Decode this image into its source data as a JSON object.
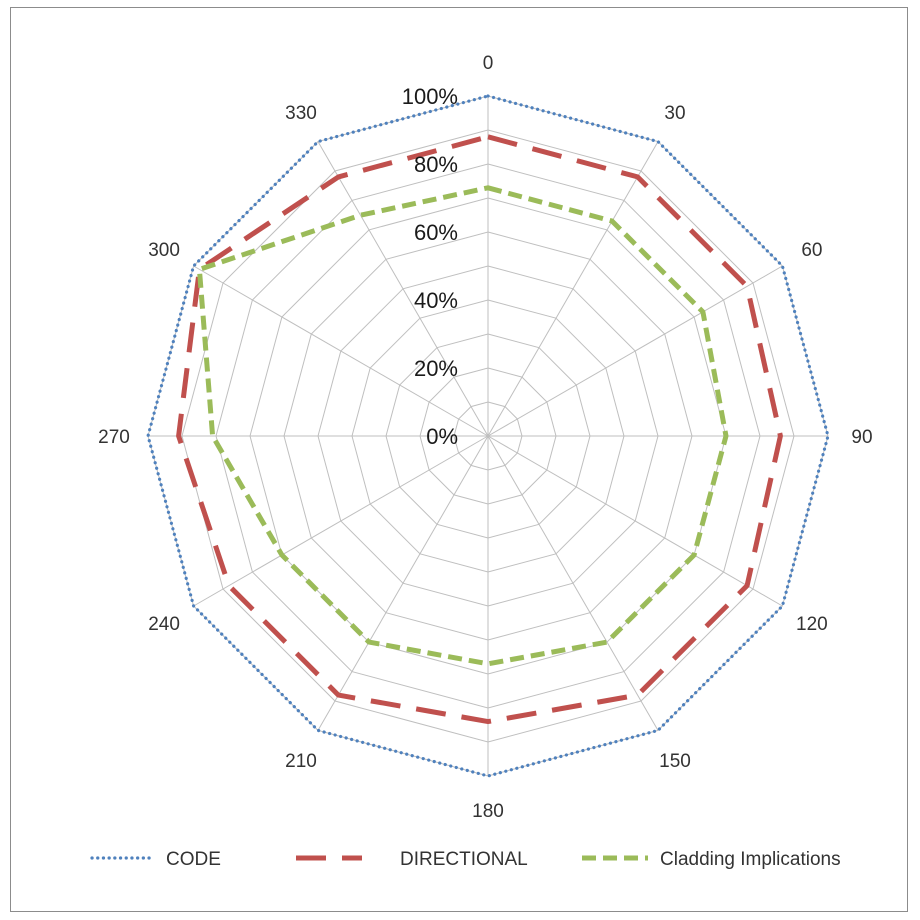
{
  "chart_data": {
    "type": "radar",
    "title": "",
    "categories": [
      "0",
      "30",
      "60",
      "90",
      "120",
      "150",
      "180",
      "210",
      "240",
      "270",
      "300",
      "330"
    ],
    "radial_axis": {
      "min": 0,
      "max": 100,
      "ticks": [
        0,
        20,
        40,
        60,
        80,
        100
      ],
      "tick_labels": [
        "0%",
        "20%",
        "40%",
        "60%",
        "80%",
        "100%"
      ]
    },
    "grid": true,
    "legend_position": "bottom",
    "series": [
      {
        "name": "CODE",
        "values": [
          100,
          100,
          100,
          100,
          100,
          100,
          100,
          100,
          100,
          100,
          100,
          100
        ],
        "color": "#4f81bd",
        "style": "dotted"
      },
      {
        "name": "DIRECTIONAL",
        "values": [
          88,
          88,
          88,
          86,
          88,
          88,
          84,
          88,
          88,
          91,
          98,
          88
        ],
        "color": "#c0504d",
        "style": "long-dash"
      },
      {
        "name": "Cladding Implications",
        "values": [
          73,
          73,
          73,
          70,
          70,
          70,
          67,
          70,
          70,
          81,
          98,
          75
        ],
        "color": "#9bbb59",
        "style": "dash"
      }
    ]
  }
}
